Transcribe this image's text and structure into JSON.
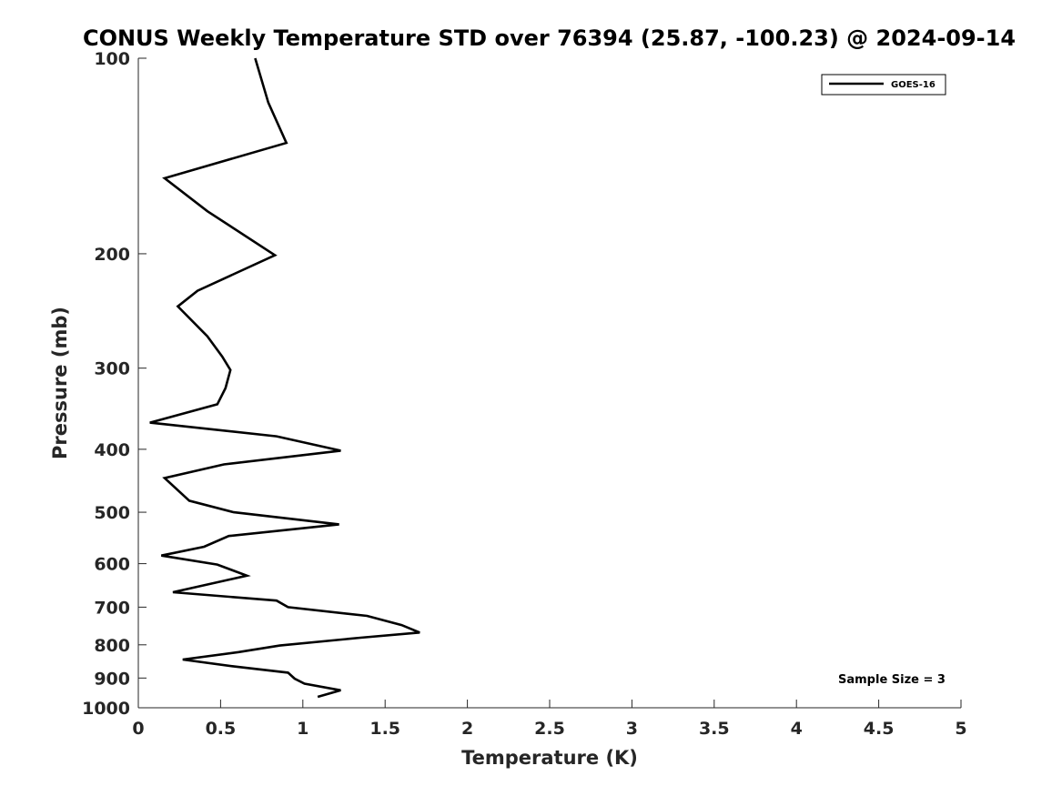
{
  "chart_data": {
    "type": "line",
    "title": "CONUS Weekly Temperature STD over 76394 (25.87, -100.23) @ 2024-09-14",
    "xlabel": "Temperature (K)",
    "ylabel": "Pressure (mb)",
    "xlim": [
      0,
      5
    ],
    "ylim": [
      100,
      1000
    ],
    "yscale": "log",
    "y_reversed": true,
    "x_ticks": [
      "0",
      "0.5",
      "1",
      "1.5",
      "2",
      "2.5",
      "3",
      "3.5",
      "4",
      "4.5",
      "5"
    ],
    "y_ticks": [
      "100",
      "200",
      "300",
      "400",
      "500",
      "600",
      "700",
      "800",
      "900",
      "1000"
    ],
    "grid": false,
    "legend_position": "top-right",
    "series": [
      {
        "name": "GOES-16",
        "color": "#000000",
        "points": [
          [
            0.71,
            100
          ],
          [
            0.79,
            117
          ],
          [
            0.9,
            135
          ],
          [
            0.16,
            153
          ],
          [
            0.42,
            172
          ],
          [
            0.83,
            201
          ],
          [
            0.36,
            228
          ],
          [
            0.24,
            241
          ],
          [
            0.42,
            268
          ],
          [
            0.51,
            288
          ],
          [
            0.56,
            302
          ],
          [
            0.53,
            322
          ],
          [
            0.48,
            341
          ],
          [
            0.07,
            364
          ],
          [
            0.84,
            382
          ],
          [
            1.23,
            402
          ],
          [
            0.52,
            422
          ],
          [
            0.16,
            443
          ],
          [
            0.31,
            480
          ],
          [
            0.58,
            500
          ],
          [
            1.22,
            522
          ],
          [
            0.55,
            544
          ],
          [
            0.4,
            565
          ],
          [
            0.14,
            583
          ],
          [
            0.48,
            602
          ],
          [
            0.66,
            626
          ],
          [
            0.21,
            664
          ],
          [
            0.84,
            684
          ],
          [
            0.91,
            700
          ],
          [
            1.39,
            722
          ],
          [
            1.6,
            746
          ],
          [
            1.71,
            766
          ],
          [
            1.35,
            780
          ],
          [
            0.86,
            802
          ],
          [
            0.61,
            821
          ],
          [
            0.27,
            843
          ],
          [
            0.57,
            863
          ],
          [
            0.91,
            883
          ],
          [
            0.95,
            902
          ],
          [
            1.01,
            918
          ],
          [
            1.23,
            940
          ],
          [
            1.09,
            962
          ]
        ]
      }
    ],
    "annotations": [
      "Sample Size = 3"
    ]
  }
}
